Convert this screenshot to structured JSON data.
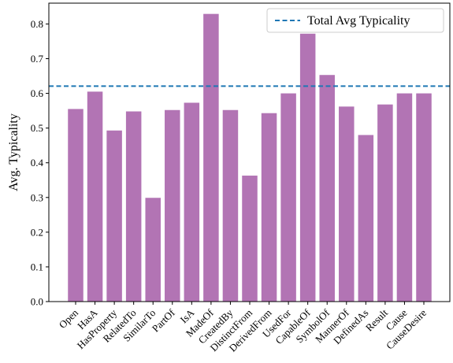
{
  "chart_data": {
    "type": "bar",
    "title": "",
    "xlabel": "",
    "ylabel": "Avg. Typicality",
    "ylim": [
      0,
      0.86
    ],
    "yticks": [
      0.0,
      0.1,
      0.2,
      0.3,
      0.4,
      0.5,
      0.6,
      0.7,
      0.8
    ],
    "ytick_labels": [
      "0.0",
      "0.1",
      "0.2",
      "0.3",
      "0.4",
      "0.5",
      "0.6",
      "0.7",
      "0.8"
    ],
    "categories": [
      "Open",
      "HasA",
      "HasProperty",
      "RelatedTo",
      "SimilarTo",
      "PartOf",
      "IsA",
      "MadeOf",
      "CreatedBy",
      "DistinctFrom",
      "DerivedFrom",
      "UsedFor",
      "CapableOf",
      "SymbolOf",
      "MannerOf",
      "DefinedAs",
      "Result",
      "Cause",
      "CauseDesire"
    ],
    "values": [
      0.555,
      0.605,
      0.493,
      0.548,
      0.299,
      0.552,
      0.573,
      0.829,
      0.552,
      0.363,
      0.543,
      0.6,
      0.772,
      0.653,
      0.562,
      0.48,
      0.568,
      0.6,
      0.6
    ],
    "bar_color": "#b274b4",
    "reference_line": {
      "label": "Total Avg Typicality",
      "value": 0.621,
      "color": "#1f77b4",
      "style": "dashed"
    },
    "legend": {
      "placement": "top-right"
    },
    "grid": false
  }
}
